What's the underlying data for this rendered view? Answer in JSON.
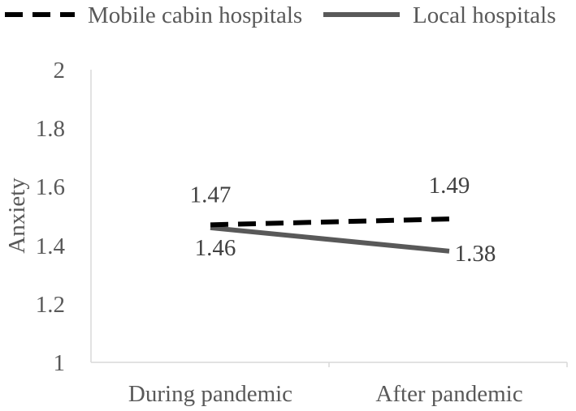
{
  "chart_data": {
    "type": "line",
    "categories": [
      "During pandemic",
      "After pandemic"
    ],
    "series": [
      {
        "name": "Mobile cabin hospitals",
        "values": [
          1.47,
          1.49
        ],
        "labels": [
          "1.47",
          "1.49"
        ],
        "style": "dashed",
        "color": "#000000"
      },
      {
        "name": "Local hospitals",
        "values": [
          1.46,
          1.38
        ],
        "labels": [
          "1.46",
          "1.38"
        ],
        "style": "solid",
        "color": "#595959"
      }
    ],
    "ylabel": "Anxiety",
    "xlabel": "",
    "ylim": [
      1,
      2
    ],
    "yticks": [
      "1",
      "1.2",
      "1.4",
      "1.6",
      "1.8",
      "2"
    ],
    "grid": false,
    "legend_position": "top",
    "colors": {
      "axis": "#d9d9d9",
      "text": "#595959"
    }
  }
}
